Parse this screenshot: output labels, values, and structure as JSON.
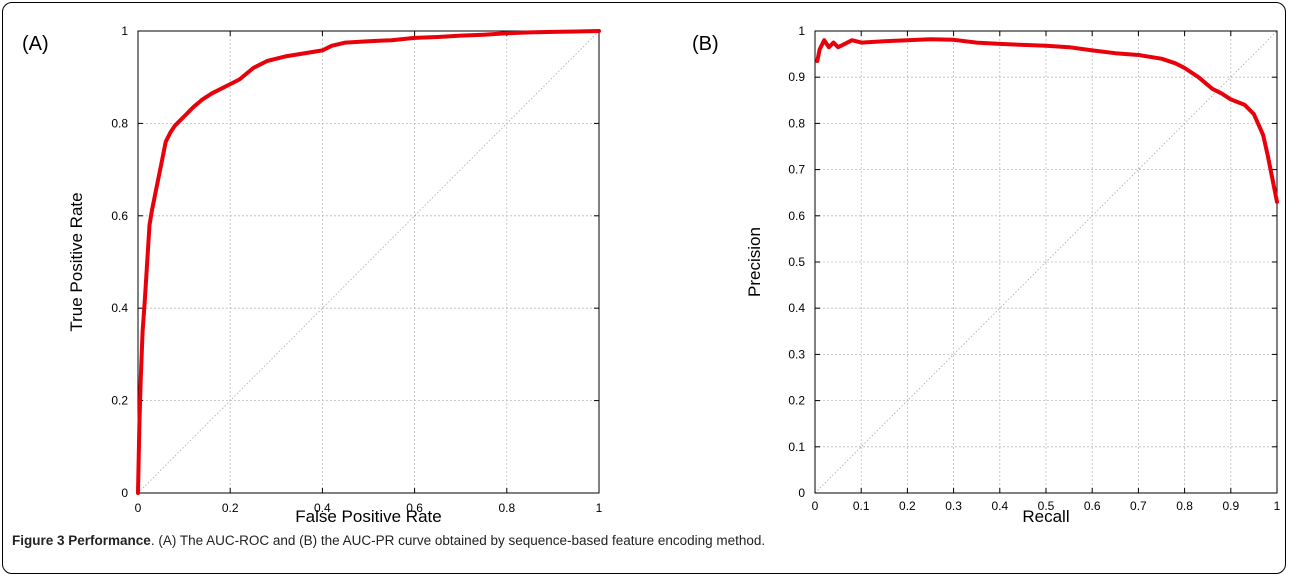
{
  "caption": {
    "figure_label": "Figure 3",
    "title": "Performance",
    "text": ". (A) The AUC-ROC and (B) the AUC-PR curve obtained by sequence-based feature encoding method."
  },
  "colors": {
    "curve": "#e8000b",
    "grid": "#bbbbbb",
    "diagonal": "#aaaaaa",
    "axis": "#000000"
  },
  "chart_data": [
    {
      "type": "line",
      "panel_label": "(A)",
      "xlabel": "False Positive Rate",
      "ylabel": "True Positive Rate",
      "xlim": [
        0,
        1
      ],
      "ylim": [
        0,
        1
      ],
      "xticks": [
        0,
        0.2,
        0.4,
        0.6,
        0.8,
        1
      ],
      "xtick_labels": [
        "0",
        "0.2",
        "0.4",
        "0.6",
        "0.8",
        "1"
      ],
      "yticks": [
        0,
        0.2,
        0.4,
        0.6,
        0.8,
        1
      ],
      "ytick_labels": [
        "0",
        "0.2",
        "0.4",
        "0.6",
        "0.8",
        "1"
      ],
      "grid": true,
      "diagonal": true,
      "series": [
        {
          "x": [
            0,
            0.003,
            0.006,
            0.01,
            0.015,
            0.02,
            0.025,
            0.03,
            0.04,
            0.05,
            0.06,
            0.07,
            0.08,
            0.09,
            0.1,
            0.12,
            0.14,
            0.16,
            0.18,
            0.2,
            0.22,
            0.25,
            0.28,
            0.3,
            0.32,
            0.35,
            0.4,
            0.42,
            0.45,
            0.5,
            0.55,
            0.6,
            0.65,
            0.7,
            0.75,
            0.8,
            0.85,
            0.9,
            0.95,
            1
          ],
          "y": [
            0,
            0.15,
            0.25,
            0.35,
            0.42,
            0.5,
            0.58,
            0.61,
            0.66,
            0.71,
            0.76,
            0.78,
            0.795,
            0.805,
            0.815,
            0.835,
            0.852,
            0.865,
            0.875,
            0.885,
            0.895,
            0.92,
            0.935,
            0.94,
            0.945,
            0.95,
            0.958,
            0.968,
            0.975,
            0.978,
            0.98,
            0.985,
            0.987,
            0.99,
            0.992,
            0.995,
            0.997,
            0.998,
            0.999,
            1
          ]
        }
      ]
    },
    {
      "type": "line",
      "panel_label": "(B)",
      "xlabel": "Recall",
      "ylabel": "Precision",
      "xlim": [
        0,
        1
      ],
      "ylim": [
        0,
        1
      ],
      "xticks": [
        0,
        0.1,
        0.2,
        0.3,
        0.4,
        0.5,
        0.6,
        0.7,
        0.8,
        0.9,
        1
      ],
      "xtick_labels": [
        "0",
        "0.1",
        "0.2",
        "0.3",
        "0.4",
        "0.5",
        "0.6",
        "0.7",
        "0.8",
        "0.9",
        "1"
      ],
      "yticks": [
        0,
        0.1,
        0.2,
        0.3,
        0.4,
        0.5,
        0.6,
        0.7,
        0.8,
        0.9,
        1
      ],
      "ytick_labels": [
        "0",
        "0.1",
        "0.2",
        "0.3",
        "0.4",
        "0.5",
        "0.6",
        "0.7",
        "0.8",
        "0.9",
        "1"
      ],
      "grid": true,
      "diagonal": true,
      "series": [
        {
          "x": [
            0.005,
            0.01,
            0.02,
            0.03,
            0.04,
            0.05,
            0.06,
            0.08,
            0.1,
            0.15,
            0.2,
            0.25,
            0.3,
            0.35,
            0.4,
            0.45,
            0.5,
            0.55,
            0.6,
            0.65,
            0.7,
            0.75,
            0.78,
            0.8,
            0.83,
            0.86,
            0.88,
            0.9,
            0.93,
            0.95,
            0.97,
            0.98,
            0.99,
            1
          ],
          "y": [
            0.935,
            0.96,
            0.98,
            0.965,
            0.975,
            0.965,
            0.97,
            0.98,
            0.975,
            0.978,
            0.98,
            0.982,
            0.981,
            0.975,
            0.972,
            0.97,
            0.968,
            0.965,
            0.958,
            0.952,
            0.948,
            0.94,
            0.93,
            0.92,
            0.9,
            0.875,
            0.865,
            0.852,
            0.84,
            0.82,
            0.775,
            0.73,
            0.68,
            0.63
          ]
        }
      ]
    }
  ]
}
